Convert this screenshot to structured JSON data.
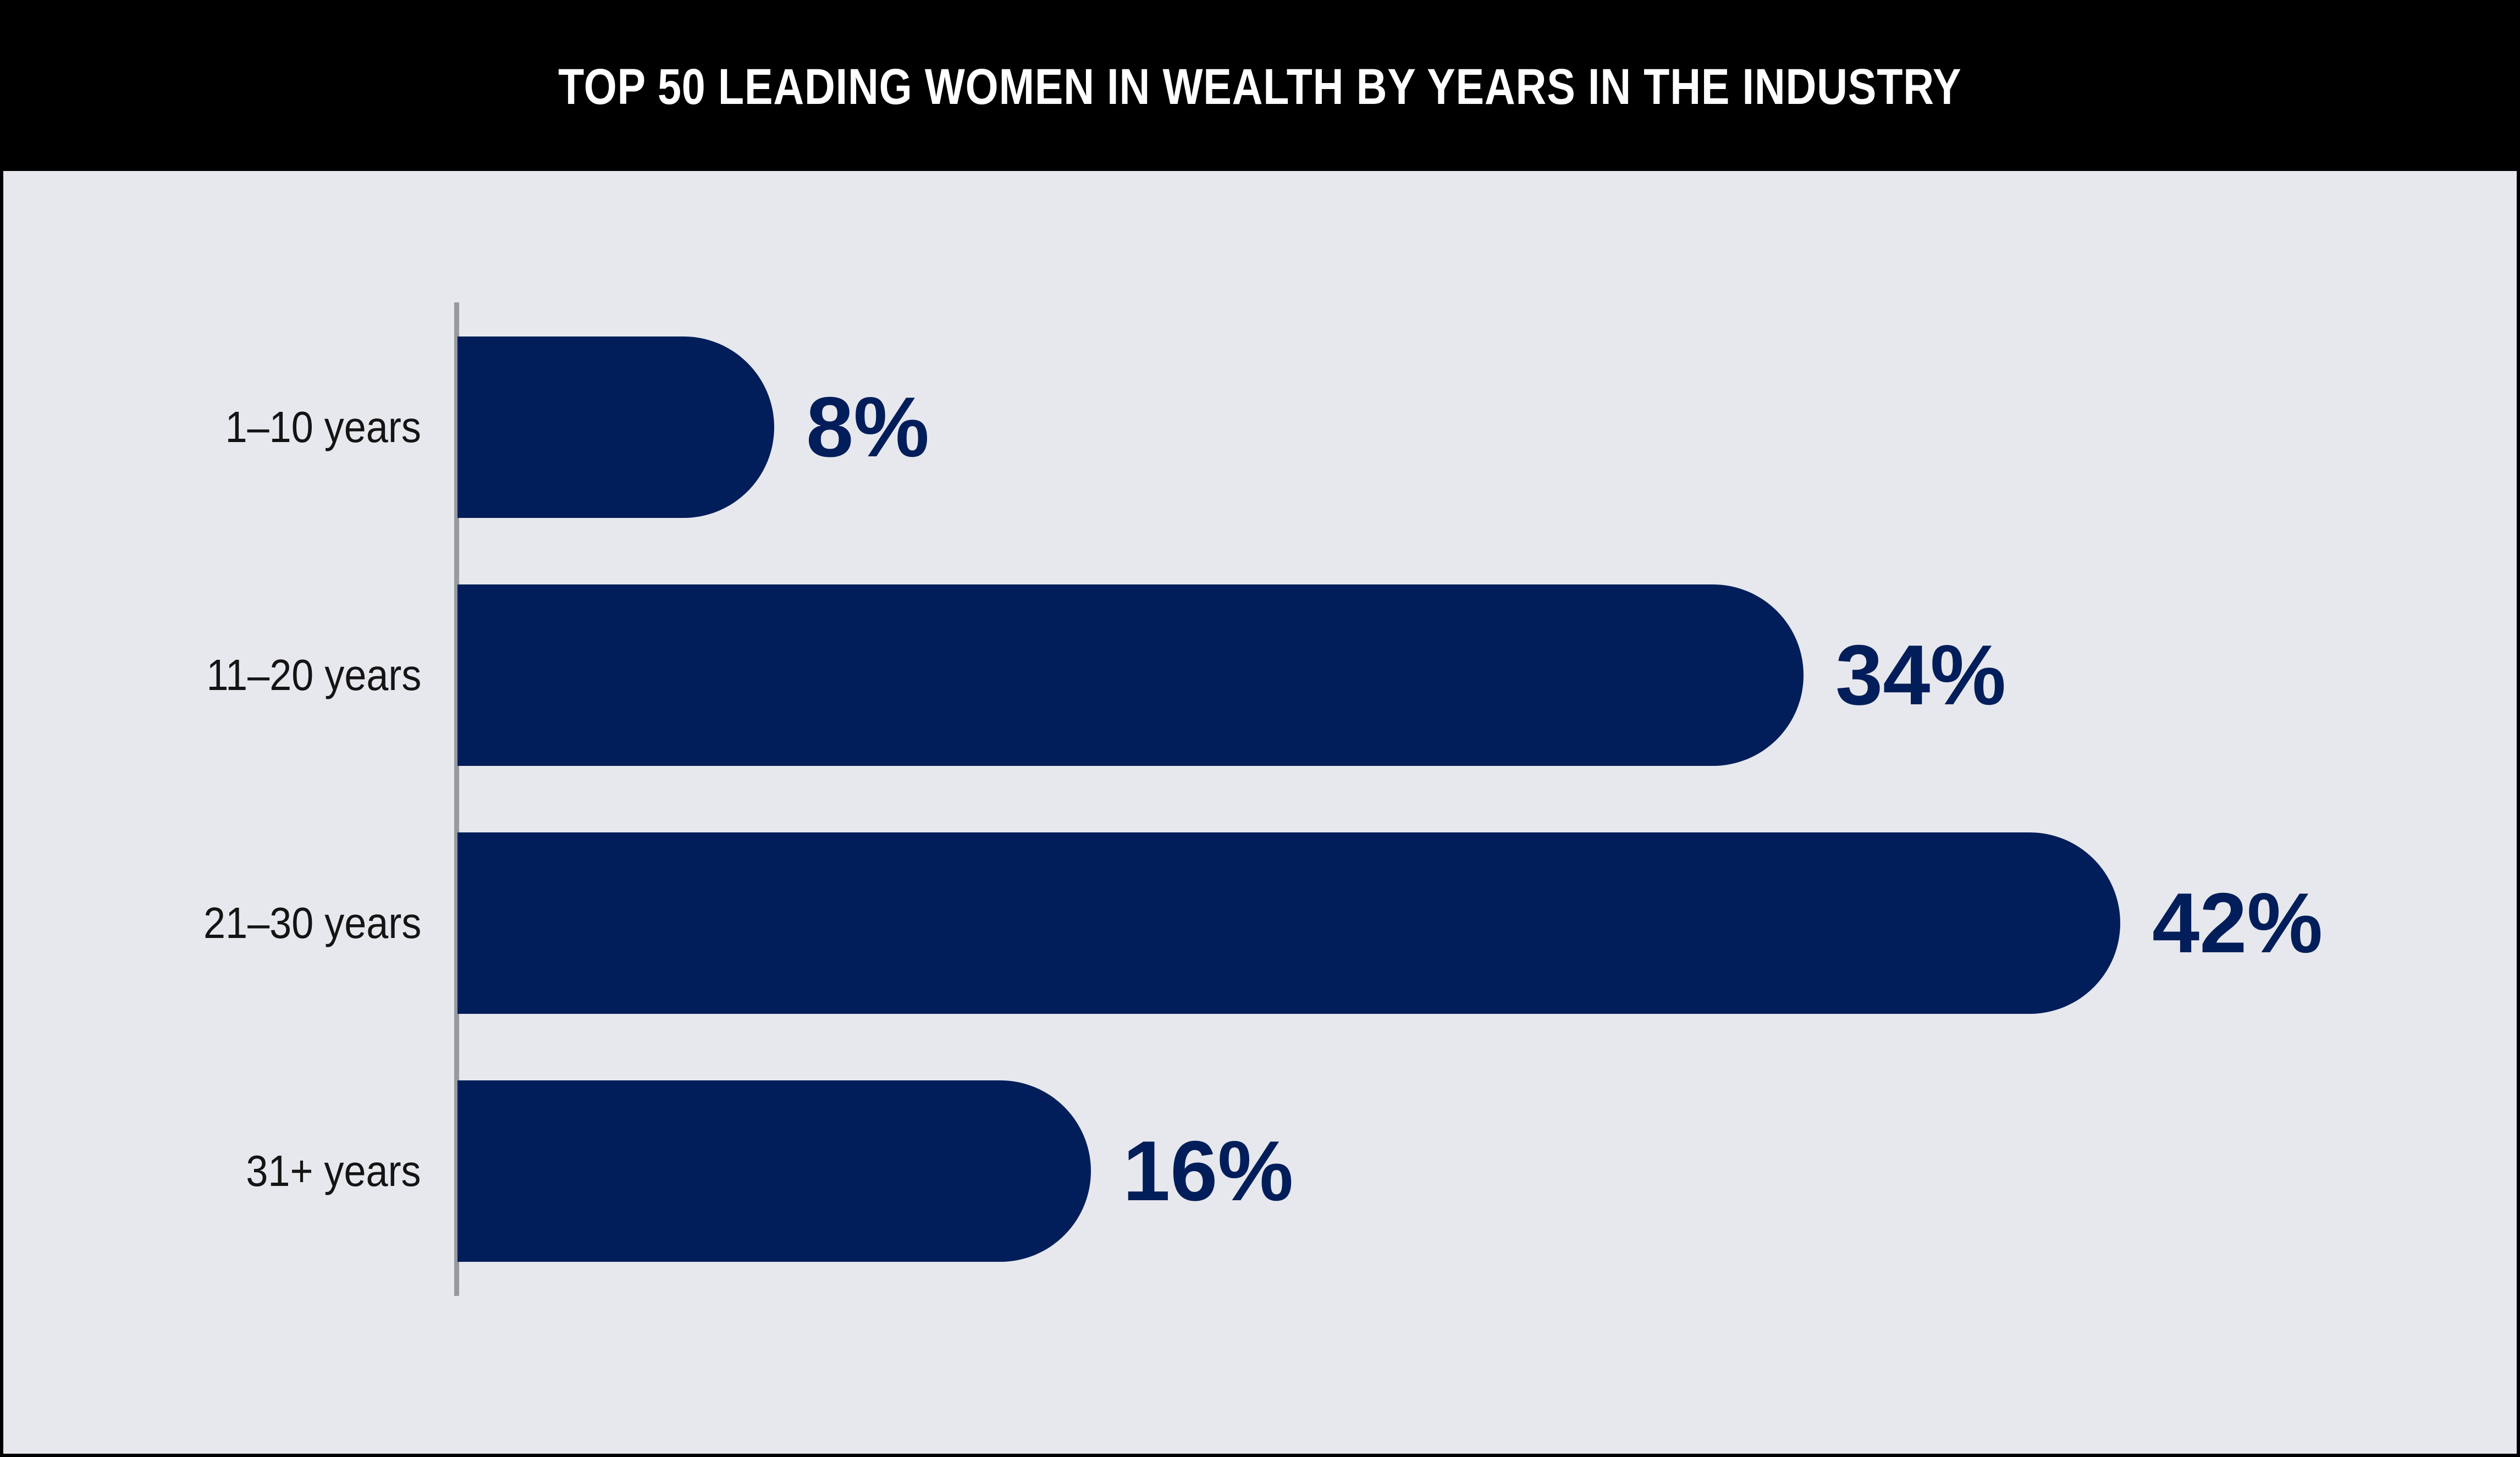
{
  "header": {
    "title": "TOP 50 LEADING WOMEN IN WEALTH BY YEARS IN THE INDUSTRY"
  },
  "colors": {
    "bar": "#011e5a",
    "background": "#e7e8ed",
    "header_background": "#000000",
    "title_text": "#ffffff",
    "axis_line": "#97999e",
    "category_text": "#141414",
    "value_text": "#011e5a"
  },
  "chart_data": {
    "type": "bar",
    "orientation": "horizontal",
    "title": "TOP 50 LEADING WOMEN IN WEALTH BY YEARS IN THE INDUSTRY",
    "categories": [
      "1–10 years",
      "11–20 years",
      "21–30 years",
      "31+ years"
    ],
    "values": [
      8,
      34,
      42,
      16
    ],
    "value_labels": [
      "8%",
      "34%",
      "42%",
      "16%"
    ],
    "unit": "percent of Top 50",
    "xlabel": "",
    "ylabel": "",
    "xlim": [
      0,
      45
    ],
    "grid": false,
    "legend": false,
    "bar_style": "rounded-right-end",
    "data_label_position": "right-of-bar"
  }
}
